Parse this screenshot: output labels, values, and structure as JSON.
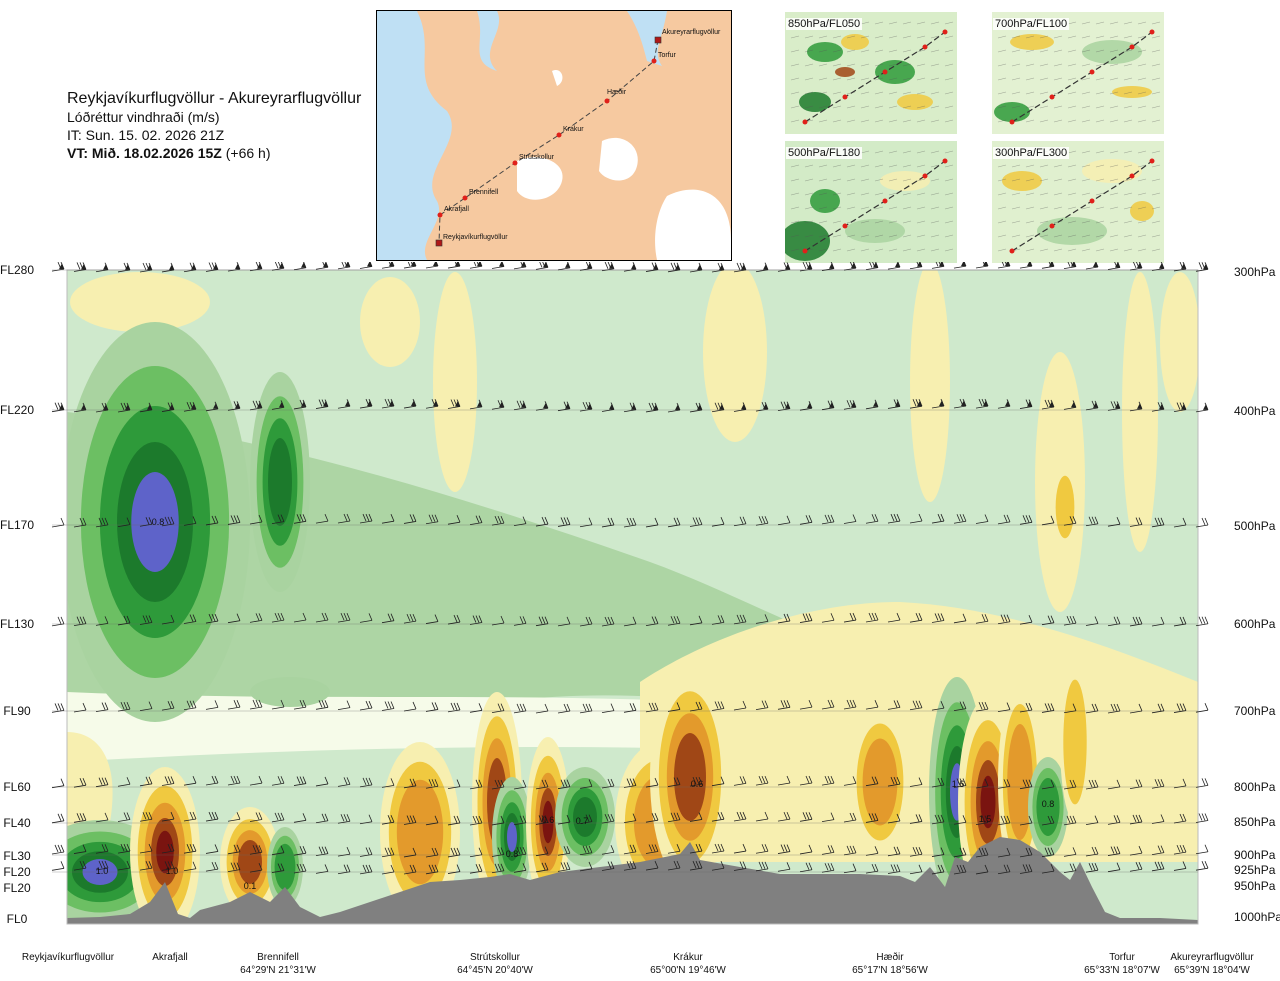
{
  "header": {
    "title": "Reykjavíkurflugvöllur - Akureyrarflugvöllur",
    "subtitle": "Lóðréttur vindhraði (m/s)",
    "issue_time": "IT: Sun. 15. 02. 2026 21Z",
    "valid_label": "VT: Mið. 18.02.2026 15Z",
    "valid_offset": "(+66 h)"
  },
  "map": {
    "waypoints": [
      "Akureyrarflugvöllur",
      "Torfur",
      "Hæðir",
      "Krákur",
      "Strútskollur",
      "Brennifell",
      "Akrafjall",
      "Reykjavíkurflugvöllur"
    ],
    "colors": {
      "land": "#f6c9a0",
      "sea": "#bfe0f4",
      "ice": "#ffffff",
      "route": "#444444",
      "point": "#e0201a"
    }
  },
  "thumbnails": [
    {
      "label": "850hPa/FL050"
    },
    {
      "label": "700hPa/FL100"
    },
    {
      "label": "500hPa/FL180"
    },
    {
      "label": "300hPa/FL300"
    }
  ],
  "chart_data": {
    "type": "heatmap",
    "title": "Lóðréttur vindhraði (m/s)",
    "left_axis_labels": [
      "FL280",
      "FL220",
      "FL170",
      "FL130",
      "FL90",
      "FL60",
      "FL40",
      "FL30",
      "FL20",
      "FL20",
      "FL0"
    ],
    "right_axis_labels": [
      "300hPa",
      "400hPa",
      "500hPa",
      "600hPa",
      "700hPa",
      "800hPa",
      "850hPa",
      "900hPa",
      "925hPa",
      "950hPa",
      "1000hPa"
    ],
    "pressure_levels_hpa": [
      300,
      400,
      500,
      600,
      700,
      800,
      850,
      900,
      925,
      950,
      1000
    ],
    "x_labels": [
      {
        "name": "Reykjavíkurflugvöllur",
        "coord": ""
      },
      {
        "name": "Akrafjall",
        "coord": ""
      },
      {
        "name": "Brennifell",
        "coord": "64°29'N 21°31'W"
      },
      {
        "name": "Strútskollur",
        "coord": "64°45'N 20°40'W"
      },
      {
        "name": "Krákur",
        "coord": "65°00'N 19°46'W"
      },
      {
        "name": "Hæðir",
        "coord": "65°17'N 18°56'W"
      },
      {
        "name": "Torfur",
        "coord": "65°33'N 18°07'W"
      },
      {
        "name": "Akureyrarflugvöllur",
        "coord": "65°39'N 18°04'W"
      }
    ],
    "annotations": [
      "1.0",
      "1.0",
      "0.1",
      "0.8",
      "0.8",
      "0.6",
      "0.7",
      "0.6",
      "1.6",
      "1.5",
      "0.8"
    ],
    "colors": {
      "strong_up": "#5e63c9",
      "up_dark": "#1c7a2c",
      "up": "#2e9a3a",
      "up_mid": "#6cbf63",
      "up_light": "#a9d3a0",
      "up_faint": "#cfe9cc",
      "neutral": "#f6fbe9",
      "down_faint": "#f7efb0",
      "down": "#f0c940",
      "down_mid": "#e39a2c",
      "down_dark": "#a04716",
      "strong_down": "#7a1410",
      "terrain": "#808080"
    }
  }
}
